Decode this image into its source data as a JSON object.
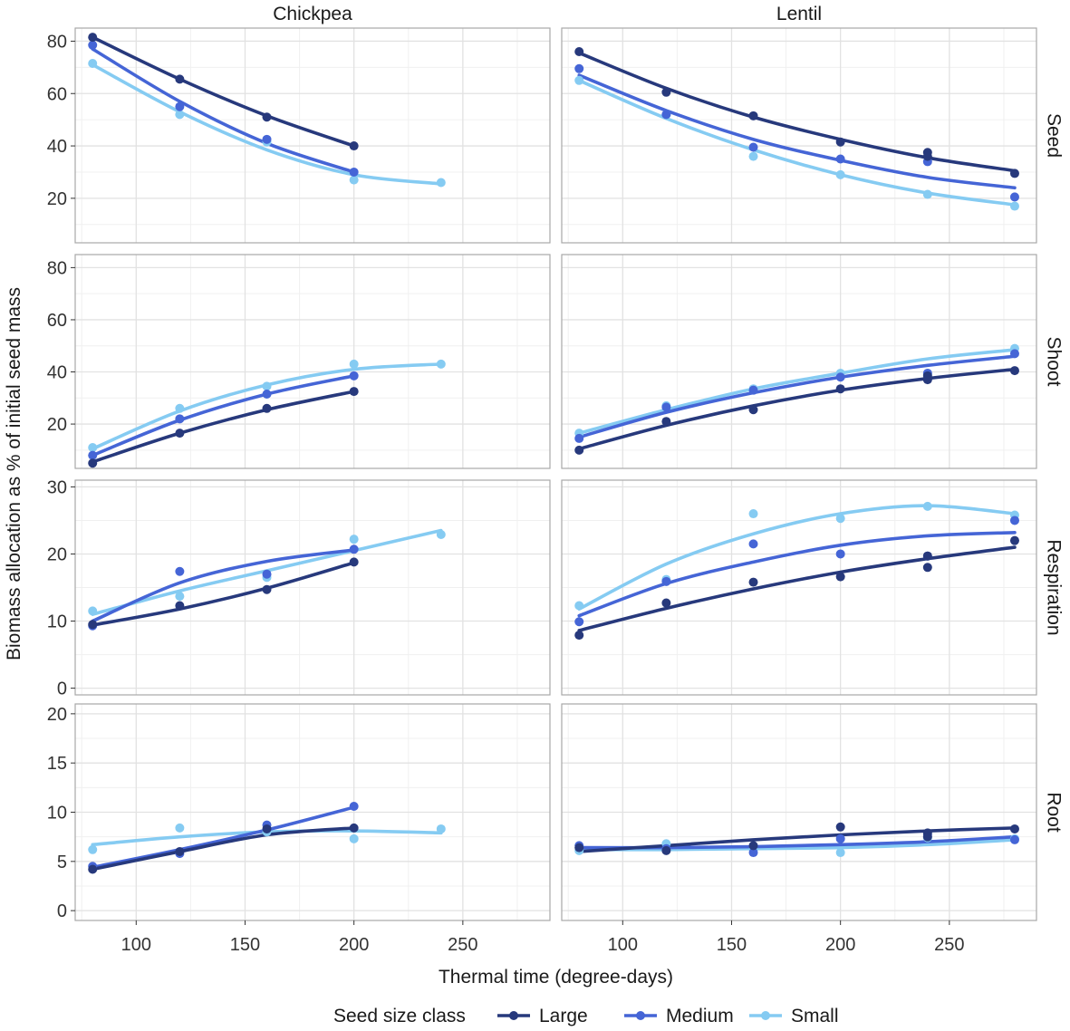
{
  "chart_data": {
    "type": "scatter",
    "facet_columns": [
      "Chickpea",
      "Lentil"
    ],
    "facet_rows": [
      "Seed",
      "Shoot",
      "Respiration",
      "Root"
    ],
    "xlabel": "Thermal time (degree-days)",
    "ylabel": "Biomass allocation as % of initial seed mass",
    "xlim": [
      72,
      290
    ],
    "x_ticks": [
      100,
      150,
      200,
      250
    ],
    "ylims": {
      "Seed": [
        3,
        85
      ],
      "Shoot": [
        3,
        85
      ],
      "Respiration": [
        -1,
        31
      ],
      "Root": [
        -1,
        21
      ]
    },
    "y_ticks": {
      "Seed": [
        20,
        40,
        60,
        80
      ],
      "Shoot": [
        20,
        40,
        60,
        80
      ],
      "Respiration": [
        0,
        10,
        20,
        30
      ],
      "Root": [
        0,
        5,
        10,
        15,
        20
      ]
    },
    "grid": true,
    "legend": {
      "title": "Seed size class",
      "position": "bottom",
      "entries": [
        "Large",
        "Medium",
        "Small"
      ]
    },
    "colors": {
      "Large": "#27397c",
      "Medium": "#4565d6",
      "Small": "#85cbf2"
    },
    "series": [
      {
        "name": "Large",
        "crop": "Chickpea",
        "component": "Seed",
        "x": [
          80,
          120,
          160,
          200
        ],
        "y": [
          81.5,
          65.5,
          51,
          40
        ],
        "fit": [
          [
            80,
            81.5
          ],
          [
            120,
            65.5
          ],
          [
            160,
            51.5
          ],
          [
            200,
            40
          ]
        ]
      },
      {
        "name": "Medium",
        "crop": "Chickpea",
        "component": "Seed",
        "x": [
          80,
          120,
          160,
          200
        ],
        "y": [
          78.5,
          55,
          42.5,
          30
        ],
        "fit": [
          [
            80,
            77
          ],
          [
            120,
            57
          ],
          [
            160,
            41
          ],
          [
            200,
            30
          ]
        ]
      },
      {
        "name": "Small",
        "crop": "Chickpea",
        "component": "Seed",
        "x": [
          80,
          120,
          160,
          200,
          240
        ],
        "y": [
          71.5,
          52,
          41.5,
          27,
          26
        ],
        "fit": [
          [
            80,
            71
          ],
          [
            120,
            53
          ],
          [
            160,
            38.5
          ],
          [
            200,
            29
          ],
          [
            240,
            25.5
          ]
        ]
      },
      {
        "name": "Large",
        "crop": "Lentil",
        "component": "Seed",
        "x": [
          80,
          120,
          160,
          200,
          240,
          240,
          280
        ],
        "y": [
          76,
          60.5,
          51.5,
          41.5,
          37.5,
          36,
          29.5
        ],
        "fit": [
          [
            80,
            75.5
          ],
          [
            120,
            62
          ],
          [
            160,
            51
          ],
          [
            200,
            42.5
          ],
          [
            240,
            35.5
          ],
          [
            280,
            30.5
          ]
        ]
      },
      {
        "name": "Medium",
        "crop": "Lentil",
        "component": "Seed",
        "x": [
          80,
          120,
          160,
          200,
          240,
          280
        ],
        "y": [
          69.5,
          52,
          39.5,
          35,
          34,
          20.5
        ],
        "fit": [
          [
            80,
            67
          ],
          [
            120,
            53.5
          ],
          [
            160,
            42.5
          ],
          [
            200,
            34.5
          ],
          [
            240,
            28
          ],
          [
            280,
            24
          ]
        ]
      },
      {
        "name": "Small",
        "crop": "Lentil",
        "component": "Seed",
        "x": [
          80,
          120,
          160,
          200,
          240,
          280
        ],
        "y": [
          65,
          52,
          36,
          29,
          21.5,
          17
        ],
        "fit": [
          [
            80,
            65
          ],
          [
            120,
            50.5
          ],
          [
            160,
            38.5
          ],
          [
            200,
            29
          ],
          [
            240,
            22
          ],
          [
            280,
            17.5
          ]
        ]
      },
      {
        "name": "Large",
        "crop": "Chickpea",
        "component": "Shoot",
        "x": [
          80,
          120,
          160,
          200
        ],
        "y": [
          5,
          16.5,
          26,
          32.5
        ],
        "fit": [
          [
            80,
            5.5
          ],
          [
            120,
            16.5
          ],
          [
            160,
            25.5
          ],
          [
            200,
            32.5
          ]
        ]
      },
      {
        "name": "Medium",
        "crop": "Chickpea",
        "component": "Shoot",
        "x": [
          80,
          120,
          160,
          200
        ],
        "y": [
          8,
          22,
          31.5,
          38.5
        ],
        "fit": [
          [
            80,
            8
          ],
          [
            120,
            21.5
          ],
          [
            160,
            31.5
          ],
          [
            200,
            38.5
          ]
        ]
      },
      {
        "name": "Small",
        "crop": "Chickpea",
        "component": "Shoot",
        "x": [
          80,
          120,
          160,
          200,
          240
        ],
        "y": [
          11,
          26,
          34.5,
          43,
          43
        ],
        "fit": [
          [
            80,
            10.5
          ],
          [
            120,
            25
          ],
          [
            160,
            35
          ],
          [
            200,
            41
          ],
          [
            240,
            43
          ]
        ]
      },
      {
        "name": "Large",
        "crop": "Lentil",
        "component": "Shoot",
        "x": [
          80,
          120,
          160,
          200,
          240,
          240,
          280
        ],
        "y": [
          10,
          21,
          25.5,
          33.5,
          37,
          38.5,
          40.5
        ],
        "fit": [
          [
            80,
            10.5
          ],
          [
            120,
            19.5
          ],
          [
            160,
            27
          ],
          [
            200,
            33
          ],
          [
            240,
            37.5
          ],
          [
            280,
            41
          ]
        ]
      },
      {
        "name": "Medium",
        "crop": "Lentil",
        "component": "Shoot",
        "x": [
          80,
          120,
          160,
          200,
          240,
          280
        ],
        "y": [
          14.5,
          26.5,
          33,
          38,
          39.5,
          47
        ],
        "fit": [
          [
            80,
            15
          ],
          [
            120,
            24.5
          ],
          [
            160,
            32
          ],
          [
            200,
            38
          ],
          [
            240,
            42.5
          ],
          [
            280,
            46
          ]
        ]
      },
      {
        "name": "Small",
        "crop": "Lentil",
        "component": "Shoot",
        "x": [
          80,
          120,
          160,
          200,
          240,
          280
        ],
        "y": [
          16.5,
          27,
          33.5,
          39.5,
          39,
          49
        ],
        "fit": [
          [
            80,
            16.5
          ],
          [
            120,
            25.5
          ],
          [
            160,
            33.5
          ],
          [
            200,
            39.5
          ],
          [
            240,
            45
          ],
          [
            280,
            48.5
          ]
        ]
      },
      {
        "name": "Large",
        "crop": "Chickpea",
        "component": "Respiration",
        "x": [
          80,
          120,
          160,
          200
        ],
        "y": [
          9.5,
          12.3,
          14.7,
          18.8
        ],
        "fit": [
          [
            80,
            9.4
          ],
          [
            120,
            11.8
          ],
          [
            160,
            14.9
          ],
          [
            200,
            18.7
          ]
        ]
      },
      {
        "name": "Medium",
        "crop": "Chickpea",
        "component": "Respiration",
        "x": [
          80,
          120,
          160,
          200
        ],
        "y": [
          9.3,
          17.4,
          17,
          20.7
        ],
        "fit": [
          [
            80,
            10
          ],
          [
            120,
            15.7
          ],
          [
            160,
            18.9
          ],
          [
            200,
            20.6
          ]
        ]
      },
      {
        "name": "Small",
        "crop": "Chickpea",
        "component": "Respiration",
        "x": [
          80,
          120,
          160,
          200,
          240
        ],
        "y": [
          11.5,
          13.7,
          16.5,
          22.2,
          22.9
        ],
        "fit": [
          [
            80,
            11
          ],
          [
            120,
            14.5
          ],
          [
            160,
            17.5
          ],
          [
            200,
            20.5
          ],
          [
            240,
            23.5
          ]
        ]
      },
      {
        "name": "Large",
        "crop": "Lentil",
        "component": "Respiration",
        "x": [
          80,
          120,
          160,
          200,
          240,
          240,
          280
        ],
        "y": [
          7.9,
          12.7,
          15.8,
          16.6,
          18,
          19.7,
          22
        ],
        "fit": [
          [
            80,
            8.6
          ],
          [
            120,
            11.9
          ],
          [
            160,
            14.8
          ],
          [
            200,
            17.3
          ],
          [
            240,
            19.3
          ],
          [
            280,
            21
          ]
        ]
      },
      {
        "name": "Medium",
        "crop": "Lentil",
        "component": "Respiration",
        "x": [
          80,
          120,
          160,
          200,
          240,
          280
        ],
        "y": [
          9.9,
          15.9,
          21.5,
          20,
          19.7,
          25
        ],
        "fit": [
          [
            80,
            10.8
          ],
          [
            120,
            15.6
          ],
          [
            160,
            18.8
          ],
          [
            200,
            21.3
          ],
          [
            240,
            22.7
          ],
          [
            280,
            23.2
          ]
        ]
      },
      {
        "name": "Small",
        "crop": "Lentil",
        "component": "Respiration",
        "x": [
          80,
          120,
          160,
          200,
          240,
          280
        ],
        "y": [
          12.3,
          16.2,
          26,
          25.3,
          27.1,
          25.8
        ],
        "fit": [
          [
            80,
            11.8
          ],
          [
            120,
            18.5
          ],
          [
            160,
            23
          ],
          [
            200,
            26
          ],
          [
            240,
            27.2
          ],
          [
            280,
            26
          ]
        ]
      },
      {
        "name": "Large",
        "crop": "Chickpea",
        "component": "Root",
        "x": [
          80,
          120,
          160,
          200
        ],
        "y": [
          4.2,
          6,
          8.3,
          8.4
        ],
        "fit": [
          [
            80,
            4.2
          ],
          [
            120,
            6
          ],
          [
            160,
            7.7
          ],
          [
            200,
            8.4
          ]
        ]
      },
      {
        "name": "Medium",
        "crop": "Chickpea",
        "component": "Root",
        "x": [
          80,
          120,
          160,
          200
        ],
        "y": [
          4.5,
          5.8,
          8.7,
          10.6
        ],
        "fit": [
          [
            80,
            4.4
          ],
          [
            120,
            6.2
          ],
          [
            160,
            8.2
          ],
          [
            200,
            10.5
          ]
        ]
      },
      {
        "name": "Small",
        "crop": "Chickpea",
        "component": "Root",
        "x": [
          80,
          120,
          160,
          200,
          240
        ],
        "y": [
          6.2,
          8.4,
          8,
          7.3,
          8.3
        ],
        "fit": [
          [
            80,
            6.7
          ],
          [
            120,
            7.5
          ],
          [
            160,
            8
          ],
          [
            200,
            8.1
          ],
          [
            240,
            7.9
          ]
        ]
      },
      {
        "name": "Large",
        "crop": "Lentil",
        "component": "Root",
        "x": [
          80,
          120,
          160,
          200,
          240,
          240,
          280
        ],
        "y": [
          6.4,
          6.1,
          6.6,
          8.5,
          7.9,
          7.5,
          8.3
        ],
        "fit": [
          [
            80,
            6
          ],
          [
            120,
            6.6
          ],
          [
            160,
            7.2
          ],
          [
            200,
            7.7
          ],
          [
            240,
            8.1
          ],
          [
            280,
            8.4
          ]
        ]
      },
      {
        "name": "Medium",
        "crop": "Lentil",
        "component": "Root",
        "x": [
          80,
          120,
          160,
          200,
          240,
          280
        ],
        "y": [
          6.6,
          6.3,
          5.9,
          7.3,
          7.7,
          7.2
        ],
        "fit": [
          [
            80,
            6.4
          ],
          [
            120,
            6.4
          ],
          [
            160,
            6.5
          ],
          [
            200,
            6.7
          ],
          [
            240,
            7
          ],
          [
            280,
            7.5
          ]
        ]
      },
      {
        "name": "Small",
        "crop": "Lentil",
        "component": "Root",
        "x": [
          80,
          120,
          160,
          200,
          240,
          280
        ],
        "y": [
          6.1,
          6.8,
          6.2,
          5.9,
          7.4,
          7.3
        ],
        "fit": [
          [
            80,
            6.2
          ],
          [
            120,
            6.2
          ],
          [
            160,
            6.3
          ],
          [
            200,
            6.4
          ],
          [
            240,
            6.7
          ],
          [
            280,
            7.2
          ]
        ]
      }
    ]
  }
}
